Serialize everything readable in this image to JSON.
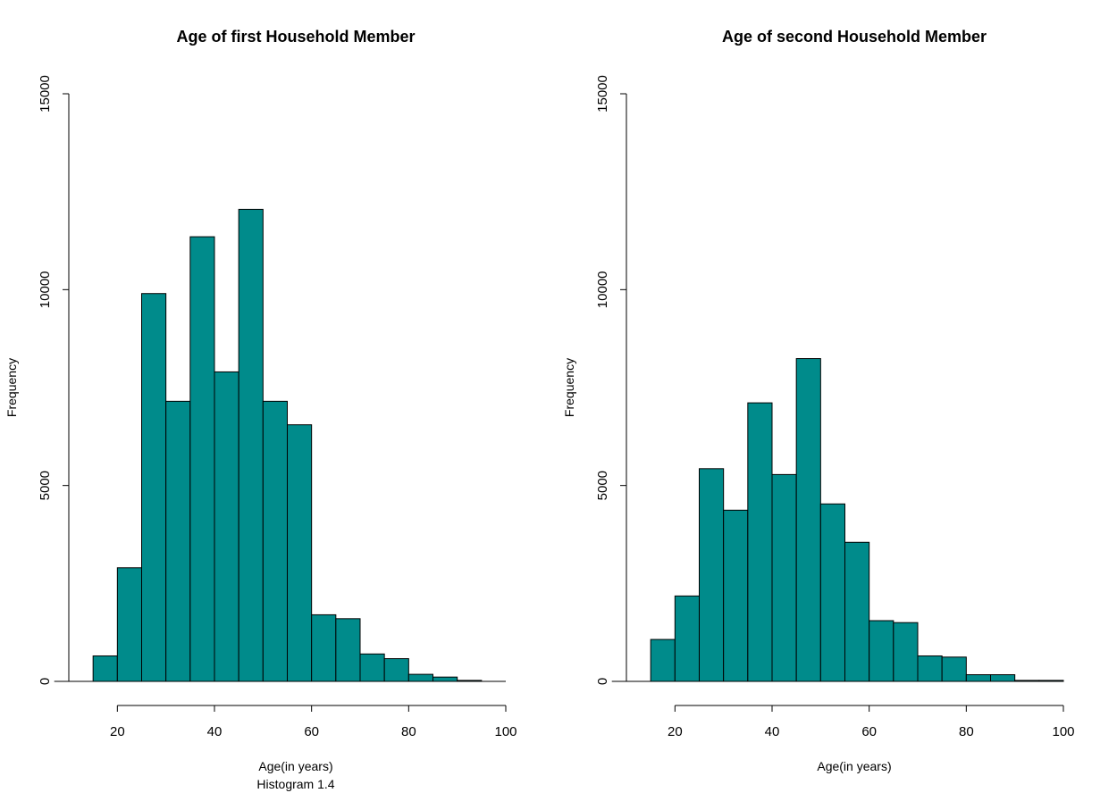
{
  "chart_data": [
    {
      "type": "bar",
      "title": "Age of first Household Member",
      "xlabel": "Age(in years)",
      "ylabel": "Frequency",
      "caption": "Histogram 1.4",
      "xlim": [
        10,
        100
      ],
      "ylim": [
        0,
        15000
      ],
      "x_ticks": [
        "20",
        "40",
        "60",
        "80",
        "100"
      ],
      "y_ticks": [
        "0",
        "5000",
        "10000",
        "15000"
      ],
      "bin_width": 5,
      "bins": [
        {
          "x0": 15,
          "x1": 20,
          "value": 650
        },
        {
          "x0": 20,
          "x1": 25,
          "value": 2900
        },
        {
          "x0": 25,
          "x1": 30,
          "value": 9900
        },
        {
          "x0": 30,
          "x1": 35,
          "value": 7150
        },
        {
          "x0": 35,
          "x1": 40,
          "value": 11350
        },
        {
          "x0": 40,
          "x1": 45,
          "value": 7900
        },
        {
          "x0": 45,
          "x1": 50,
          "value": 12050
        },
        {
          "x0": 50,
          "x1": 55,
          "value": 7150
        },
        {
          "x0": 55,
          "x1": 60,
          "value": 6550
        },
        {
          "x0": 60,
          "x1": 65,
          "value": 1700
        },
        {
          "x0": 65,
          "x1": 70,
          "value": 1600
        },
        {
          "x0": 70,
          "x1": 75,
          "value": 700
        },
        {
          "x0": 75,
          "x1": 80,
          "value": 580
        },
        {
          "x0": 80,
          "x1": 85,
          "value": 180
        },
        {
          "x0": 85,
          "x1": 90,
          "value": 110
        },
        {
          "x0": 90,
          "x1": 95,
          "value": 25
        }
      ],
      "bar_color": "#008B8B",
      "grid": false
    },
    {
      "type": "bar",
      "title": "Age of second Household Member",
      "xlabel": "Age(in years)",
      "ylabel": "Frequency",
      "xlim": [
        10,
        100
      ],
      "ylim": [
        0,
        15000
      ],
      "x_ticks": [
        "20",
        "40",
        "60",
        "80",
        "100"
      ],
      "y_ticks": [
        "0",
        "5000",
        "10000",
        "15000"
      ],
      "bin_width": 5,
      "bins": [
        {
          "x0": 15,
          "x1": 20,
          "value": 1070
        },
        {
          "x0": 20,
          "x1": 25,
          "value": 2180
        },
        {
          "x0": 25,
          "x1": 30,
          "value": 5430
        },
        {
          "x0": 30,
          "x1": 35,
          "value": 4370
        },
        {
          "x0": 35,
          "x1": 40,
          "value": 7110
        },
        {
          "x0": 40,
          "x1": 45,
          "value": 5280
        },
        {
          "x0": 45,
          "x1": 50,
          "value": 8240
        },
        {
          "x0": 50,
          "x1": 55,
          "value": 4530
        },
        {
          "x0": 55,
          "x1": 60,
          "value": 3550
        },
        {
          "x0": 60,
          "x1": 65,
          "value": 1550
        },
        {
          "x0": 65,
          "x1": 70,
          "value": 1500
        },
        {
          "x0": 70,
          "x1": 75,
          "value": 650
        },
        {
          "x0": 75,
          "x1": 80,
          "value": 620
        },
        {
          "x0": 80,
          "x1": 85,
          "value": 170
        },
        {
          "x0": 85,
          "x1": 90,
          "value": 170
        },
        {
          "x0": 90,
          "x1": 95,
          "value": 25
        },
        {
          "x0": 95,
          "x1": 100,
          "value": 25
        }
      ],
      "bar_color": "#008B8B",
      "grid": false
    }
  ]
}
